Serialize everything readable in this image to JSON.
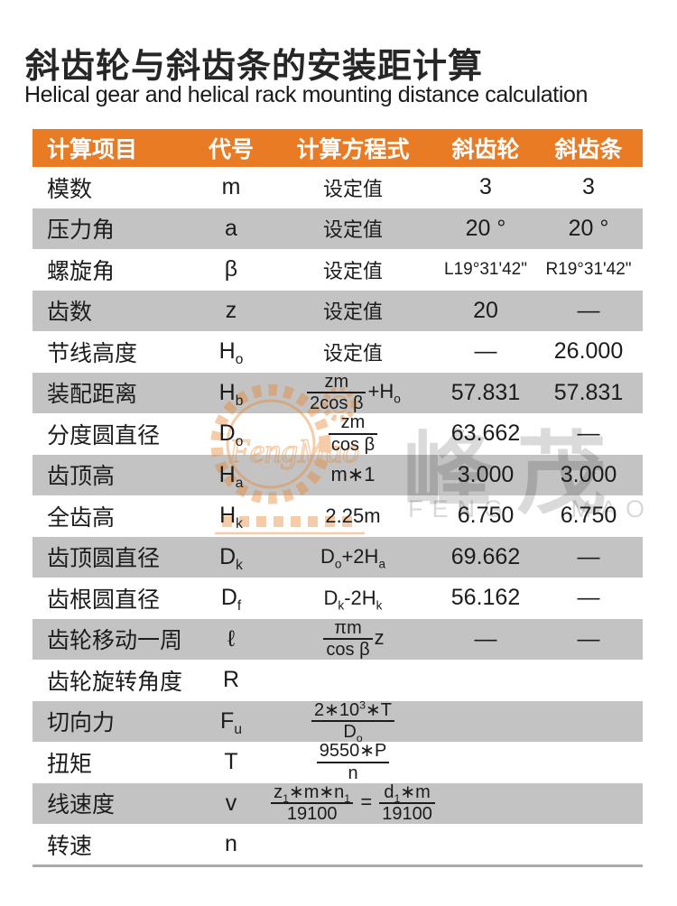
{
  "page": {
    "title_zh": "斜齿轮与斜齿条的安装距计算",
    "title_en": "Helical gear and helical rack mounting distance calculation"
  },
  "colors": {
    "header_bg": "#e87b24",
    "row_alt_bg": "#c3c3c3",
    "text": "#1c1c1c",
    "divider": "#ababab",
    "watermark_orange": "#e8872f"
  },
  "watermark": {
    "logo_text": "FengMao",
    "cn": "峰茂",
    "en": "FENG MAO",
    "gear_icon": "gear-and-rack-outline"
  },
  "table": {
    "headers": [
      "计算项目",
      "代号",
      "计算方程式",
      "斜齿轮",
      "斜齿条"
    ],
    "rows": [
      {
        "item": "模数",
        "symbol": [
          {
            "t": "x",
            "v": "m"
          }
        ],
        "formula": [
          {
            "t": "x",
            "v": "设定值"
          }
        ],
        "gear": "3",
        "rack": "3"
      },
      {
        "item": "压力角",
        "symbol": [
          {
            "t": "x",
            "v": "a"
          }
        ],
        "formula": [
          {
            "t": "x",
            "v": "设定值"
          }
        ],
        "gear": "20 °",
        "rack": "20 °"
      },
      {
        "item": "螺旋角",
        "symbol": [
          {
            "t": "x",
            "v": "β"
          }
        ],
        "formula": [
          {
            "t": "x",
            "v": "设定值"
          }
        ],
        "gear": "L19°31'42\"",
        "rack": "R19°31'42\""
      },
      {
        "item": "齿数",
        "symbol": [
          {
            "t": "x",
            "v": "z"
          }
        ],
        "formula": [
          {
            "t": "x",
            "v": "设定值"
          }
        ],
        "gear": "20",
        "rack": "—"
      },
      {
        "item": "节线高度",
        "symbol": [
          {
            "t": "x",
            "v": "H"
          },
          {
            "t": "b",
            "v": "o"
          }
        ],
        "formula": [
          {
            "t": "x",
            "v": "设定值"
          }
        ],
        "gear": "—",
        "rack": "26.000"
      },
      {
        "item": "装配距离",
        "symbol": [
          {
            "t": "x",
            "v": "H"
          },
          {
            "t": "b",
            "v": "b"
          }
        ],
        "formula": [
          {
            "t": "f",
            "n": [
              {
                "t": "x",
                "v": "zm"
              }
            ],
            "d": [
              {
                "t": "x",
                "v": "2cos β"
              }
            ]
          },
          {
            "t": "x",
            "v": "+H"
          },
          {
            "t": "b",
            "v": "o"
          }
        ],
        "gear": "57.831",
        "rack": "57.831"
      },
      {
        "item": "分度圆直径",
        "symbol": [
          {
            "t": "x",
            "v": "D"
          },
          {
            "t": "b",
            "v": "o"
          }
        ],
        "formula": [
          {
            "t": "f",
            "n": [
              {
                "t": "x",
                "v": "zm"
              }
            ],
            "d": [
              {
                "t": "x",
                "v": "cos β"
              }
            ]
          }
        ],
        "gear": "63.662",
        "rack": "—"
      },
      {
        "item": "齿顶高",
        "symbol": [
          {
            "t": "x",
            "v": "H"
          },
          {
            "t": "b",
            "v": "a"
          }
        ],
        "formula": [
          {
            "t": "x",
            "v": "m∗1"
          }
        ],
        "gear": "3.000",
        "rack": "3.000"
      },
      {
        "item": "全齿高",
        "symbol": [
          {
            "t": "x",
            "v": "H"
          },
          {
            "t": "b",
            "v": "k"
          }
        ],
        "formula": [
          {
            "t": "x",
            "v": "2.25m"
          }
        ],
        "gear": "6.750",
        "rack": "6.750"
      },
      {
        "item": "齿顶圆直径",
        "symbol": [
          {
            "t": "x",
            "v": "D"
          },
          {
            "t": "b",
            "v": "k"
          }
        ],
        "formula": [
          {
            "t": "x",
            "v": "D"
          },
          {
            "t": "b",
            "v": "o"
          },
          {
            "t": "x",
            "v": "+2H"
          },
          {
            "t": "b",
            "v": "a"
          }
        ],
        "gear": "69.662",
        "rack": "—"
      },
      {
        "item": "齿根圆直径",
        "symbol": [
          {
            "t": "x",
            "v": "D"
          },
          {
            "t": "b",
            "v": "f"
          }
        ],
        "formula": [
          {
            "t": "x",
            "v": "D"
          },
          {
            "t": "b",
            "v": "k"
          },
          {
            "t": "x",
            "v": "-2H"
          },
          {
            "t": "b",
            "v": "k"
          }
        ],
        "gear": "56.162",
        "rack": "—"
      },
      {
        "item": "齿轮移动一周",
        "symbol": [
          {
            "t": "x",
            "v": "ℓ"
          }
        ],
        "formula": [
          {
            "t": "f",
            "n": [
              {
                "t": "x",
                "v": "πm"
              }
            ],
            "d": [
              {
                "t": "x",
                "v": "cos β"
              }
            ]
          },
          {
            "t": "x",
            "v": "z"
          }
        ],
        "gear": "—",
        "rack": "—"
      },
      {
        "item": "齿轮旋转角度",
        "symbol": [
          {
            "t": "x",
            "v": "R"
          }
        ],
        "formula": [],
        "gear": "",
        "rack": ""
      },
      {
        "item": "切向力",
        "symbol": [
          {
            "t": "x",
            "v": "F"
          },
          {
            "t": "b",
            "v": "u"
          }
        ],
        "formula": [
          {
            "t": "f",
            "n": [
              {
                "t": "x",
                "v": "2∗10"
              },
              {
                "t": "p",
                "v": "3"
              },
              {
                "t": "x",
                "v": "∗T"
              }
            ],
            "d": [
              {
                "t": "x",
                "v": "D"
              },
              {
                "t": "b",
                "v": "o"
              }
            ]
          }
        ],
        "gear": "",
        "rack": ""
      },
      {
        "item": "扭矩",
        "symbol": [
          {
            "t": "x",
            "v": "T"
          }
        ],
        "formula": [
          {
            "t": "f",
            "n": [
              {
                "t": "x",
                "v": "9550∗P"
              }
            ],
            "d": [
              {
                "t": "x",
                "v": "n"
              }
            ]
          }
        ],
        "gear": "",
        "rack": ""
      },
      {
        "item": "线速度",
        "symbol": [
          {
            "t": "x",
            "v": "v"
          }
        ],
        "formula": [
          {
            "t": "f",
            "n": [
              {
                "t": "x",
                "v": "z"
              },
              {
                "t": "b",
                "v": "1"
              },
              {
                "t": "x",
                "v": "∗m∗n"
              },
              {
                "t": "b",
                "v": "1"
              }
            ],
            "d": [
              {
                "t": "x",
                "v": "19100"
              }
            ]
          },
          {
            "t": "x",
            "v": " = "
          },
          {
            "t": "f",
            "n": [
              {
                "t": "x",
                "v": "d"
              },
              {
                "t": "b",
                "v": "1"
              },
              {
                "t": "x",
                "v": "∗m"
              }
            ],
            "d": [
              {
                "t": "x",
                "v": "19100"
              }
            ]
          }
        ],
        "gear": "",
        "rack": ""
      },
      {
        "item": "转速",
        "symbol": [
          {
            "t": "x",
            "v": "n"
          }
        ],
        "formula": [],
        "gear": "",
        "rack": ""
      }
    ]
  }
}
